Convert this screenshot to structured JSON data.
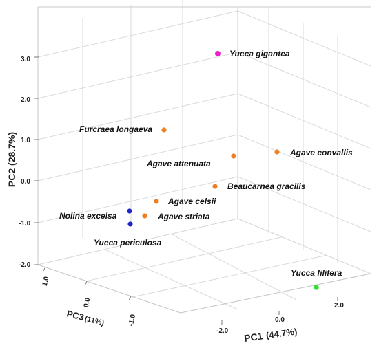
{
  "chart_data": {
    "type": "scatter",
    "projection": "3d",
    "grid": true,
    "axes": {
      "x": {
        "label": "PC1",
        "unit": "(44.7%)",
        "ticks": [
          "-2.0",
          "0.0",
          "2.0"
        ]
      },
      "y": {
        "label": "PC2 (28.7%)",
        "ticks": [
          "-2.0",
          "-1.0",
          "0.0",
          "1.0",
          "2.0",
          "3.0"
        ]
      },
      "z": {
        "label": "PC3",
        "unit": "(11%)",
        "ticks": [
          "1.0",
          "0.0",
          "-1.0"
        ]
      }
    },
    "points": [
      {
        "label": "Yucca gigantea",
        "x": 0.6,
        "y": 3.0,
        "z": 0.5,
        "color": "#ee22cc"
      },
      {
        "label": "Furcraea longaeva",
        "x": -1.4,
        "y": 1.2,
        "z": 0.3,
        "color": "#f07f24"
      },
      {
        "label": "Agave convallis",
        "x": 1.9,
        "y": 0.7,
        "z": 0.5,
        "color": "#f07f24"
      },
      {
        "label": "Agave attenuata",
        "x": 0.5,
        "y": 0.6,
        "z": 0.4,
        "color": "#f07f24"
      },
      {
        "label": "Beaucarnea gracilis",
        "x": 0.1,
        "y": -0.1,
        "z": 0.2,
        "color": "#f07f24"
      },
      {
        "label": "Agave celsii",
        "x": -1.0,
        "y": -0.6,
        "z": 0.1,
        "color": "#f07f24"
      },
      {
        "label": "Agave striata",
        "x": -1.2,
        "y": -0.9,
        "z": 0.0,
        "color": "#f07f24"
      },
      {
        "label": "Nolina excelsa",
        "x": -1.6,
        "y": -0.8,
        "z": 0.1,
        "color": "#1f24c8"
      },
      {
        "label": "Yucca periculosa",
        "x": -1.6,
        "y": -1.0,
        "z": 0.0,
        "color": "#1f24c8"
      },
      {
        "label": "Yucca filifera",
        "x": 2.0,
        "y": -2.2,
        "z": -0.6,
        "color": "#33dd33"
      }
    ]
  }
}
